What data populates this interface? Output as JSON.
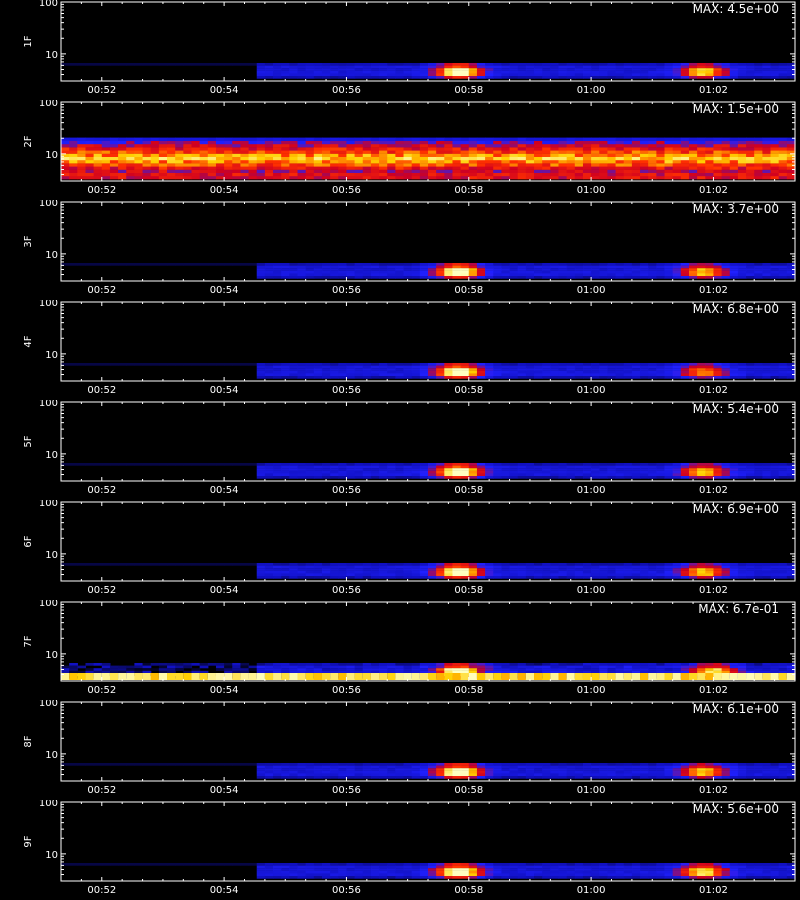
{
  "figure": {
    "x_axis_label": ""
  },
  "chart_data": [
    {
      "type": "heatmap",
      "panel": "1F",
      "ylabel": "1F",
      "max_label": "MAX: 4.5e+00",
      "yticks": [
        "100",
        "10"
      ],
      "ylim": [
        3,
        100
      ],
      "y_log": true,
      "x_ticks": [
        "00:52",
        "00:54",
        "00:56",
        "00:58",
        "01:00",
        "01:02"
      ],
      "xlim": [
        "00:51:20",
        "01:03:20"
      ],
      "colormap": [
        "#000000",
        "#1010c0",
        "#2020ff",
        "#d00020",
        "#ff3000",
        "#ffd000",
        "#ffffc0"
      ],
      "pattern": "activity",
      "hotspots": [
        {
          "time": "00:57:50",
          "peak": 1.0
        },
        {
          "time": "01:01:50",
          "peak": 0.75
        }
      ]
    },
    {
      "type": "heatmap",
      "panel": "2F",
      "ylabel": "2F",
      "max_label": "MAX: 1.5e+00",
      "yticks": [
        "100",
        "10"
      ],
      "ylim": [
        3,
        100
      ],
      "y_log": true,
      "x_ticks": [
        "00:52",
        "00:54",
        "00:56",
        "00:58",
        "01:00",
        "01:02"
      ],
      "xlim": [
        "00:51:20",
        "01:03:20"
      ],
      "colormap": [
        "#000000",
        "#1010c0",
        "#2020ff",
        "#d00020",
        "#ff3000",
        "#ffd000",
        "#ffffc0"
      ],
      "pattern": "band",
      "hotspots": []
    },
    {
      "type": "heatmap",
      "panel": "3F",
      "ylabel": "3F",
      "max_label": "MAX: 3.7e+00",
      "yticks": [
        "100",
        "10"
      ],
      "ylim": [
        3,
        100
      ],
      "y_log": true,
      "x_ticks": [
        "00:52",
        "00:54",
        "00:56",
        "00:58",
        "01:00",
        "01:02"
      ],
      "xlim": [
        "00:51:20",
        "01:03:20"
      ],
      "colormap": [
        "#000000",
        "#1010c0",
        "#2020ff",
        "#d00020",
        "#ff3000",
        "#ffd000",
        "#ffffc0"
      ],
      "pattern": "activity",
      "hotspots": [
        {
          "time": "00:57:50",
          "peak": 1.0
        },
        {
          "time": "01:01:50",
          "peak": 0.7
        }
      ]
    },
    {
      "type": "heatmap",
      "panel": "4F",
      "ylabel": "4F",
      "max_label": "MAX: 6.8e+00",
      "yticks": [
        "100",
        "10"
      ],
      "ylim": [
        3,
        100
      ],
      "y_log": true,
      "x_ticks": [
        "00:52",
        "00:54",
        "00:56",
        "00:58",
        "01:00",
        "01:02"
      ],
      "xlim": [
        "00:51:20",
        "01:03:20"
      ],
      "colormap": [
        "#000000",
        "#1010c0",
        "#2020ff",
        "#d00020",
        "#ff3000",
        "#ffd000",
        "#ffffc0"
      ],
      "pattern": "activity",
      "hotspots": [
        {
          "time": "00:57:50",
          "peak": 1.0
        },
        {
          "time": "01:01:50",
          "peak": 0.6
        }
      ]
    },
    {
      "type": "heatmap",
      "panel": "5F",
      "ylabel": "5F",
      "max_label": "MAX: 5.4e+00",
      "yticks": [
        "100",
        "10"
      ],
      "ylim": [
        3,
        100
      ],
      "y_log": true,
      "x_ticks": [
        "00:52",
        "00:54",
        "00:56",
        "00:58",
        "01:00",
        "01:02"
      ],
      "xlim": [
        "00:51:20",
        "01:03:20"
      ],
      "colormap": [
        "#000000",
        "#1010c0",
        "#2020ff",
        "#d00020",
        "#ff3000",
        "#ffd000",
        "#ffffc0"
      ],
      "pattern": "activity",
      "hotspots": [
        {
          "time": "00:57:50",
          "peak": 1.0
        },
        {
          "time": "01:01:50",
          "peak": 0.7
        }
      ]
    },
    {
      "type": "heatmap",
      "panel": "6F",
      "ylabel": "6F",
      "max_label": "MAX: 6.9e+00",
      "yticks": [
        "100",
        "10"
      ],
      "ylim": [
        3,
        100
      ],
      "y_log": true,
      "x_ticks": [
        "00:52",
        "00:54",
        "00:56",
        "00:58",
        "01:00",
        "01:02"
      ],
      "xlim": [
        "00:51:20",
        "01:03:20"
      ],
      "colormap": [
        "#000000",
        "#1010c0",
        "#2020ff",
        "#d00020",
        "#ff3000",
        "#ffd000",
        "#ffffc0"
      ],
      "pattern": "activity",
      "hotspots": [
        {
          "time": "00:57:50",
          "peak": 1.0
        },
        {
          "time": "01:01:50",
          "peak": 0.7
        }
      ]
    },
    {
      "type": "heatmap",
      "panel": "7F",
      "ylabel": "7F",
      "max_label": "MAX: 6.7e-01",
      "yticks": [
        "100",
        "10"
      ],
      "ylim": [
        3,
        100
      ],
      "y_log": true,
      "x_ticks": [
        "00:52",
        "00:54",
        "00:56",
        "00:58",
        "01:00",
        "01:02"
      ],
      "xlim": [
        "00:51:20",
        "01:03:20"
      ],
      "colormap": [
        "#000000",
        "#1010c0",
        "#2020ff",
        "#d00020",
        "#ff3000",
        "#ffd000",
        "#ffffc0"
      ],
      "pattern": "noisy",
      "hotspots": [
        {
          "time": "00:57:50",
          "peak": 1.0
        },
        {
          "time": "01:02:00",
          "peak": 0.8
        }
      ]
    },
    {
      "type": "heatmap",
      "panel": "8F",
      "ylabel": "8F",
      "max_label": "MAX: 6.1e+00",
      "yticks": [
        "100",
        "10"
      ],
      "ylim": [
        3,
        100
      ],
      "y_log": true,
      "x_ticks": [
        "00:52",
        "00:54",
        "00:56",
        "00:58",
        "01:00",
        "01:02"
      ],
      "xlim": [
        "00:51:20",
        "01:03:20"
      ],
      "colormap": [
        "#000000",
        "#1010c0",
        "#2020ff",
        "#d00020",
        "#ff3000",
        "#ffd000",
        "#ffffc0"
      ],
      "pattern": "activity",
      "hotspots": [
        {
          "time": "00:57:50",
          "peak": 1.0
        },
        {
          "time": "01:01:50",
          "peak": 0.7
        }
      ]
    },
    {
      "type": "heatmap",
      "panel": "9F",
      "ylabel": "9F",
      "max_label": "MAX: 5.6e+00",
      "yticks": [
        "100",
        "10"
      ],
      "ylim": [
        3,
        100
      ],
      "y_log": true,
      "x_ticks": [
        "00:52",
        "00:54",
        "00:56",
        "00:58",
        "01:00",
        "01:02"
      ],
      "xlim": [
        "00:51:20",
        "01:03:20"
      ],
      "colormap": [
        "#000000",
        "#1010c0",
        "#2020ff",
        "#d00020",
        "#ff3000",
        "#ffd000",
        "#ffffc0"
      ],
      "pattern": "activity",
      "hotspots": [
        {
          "time": "00:57:50",
          "peak": 1.0
        },
        {
          "time": "01:01:50",
          "peak": 0.8
        }
      ]
    }
  ]
}
